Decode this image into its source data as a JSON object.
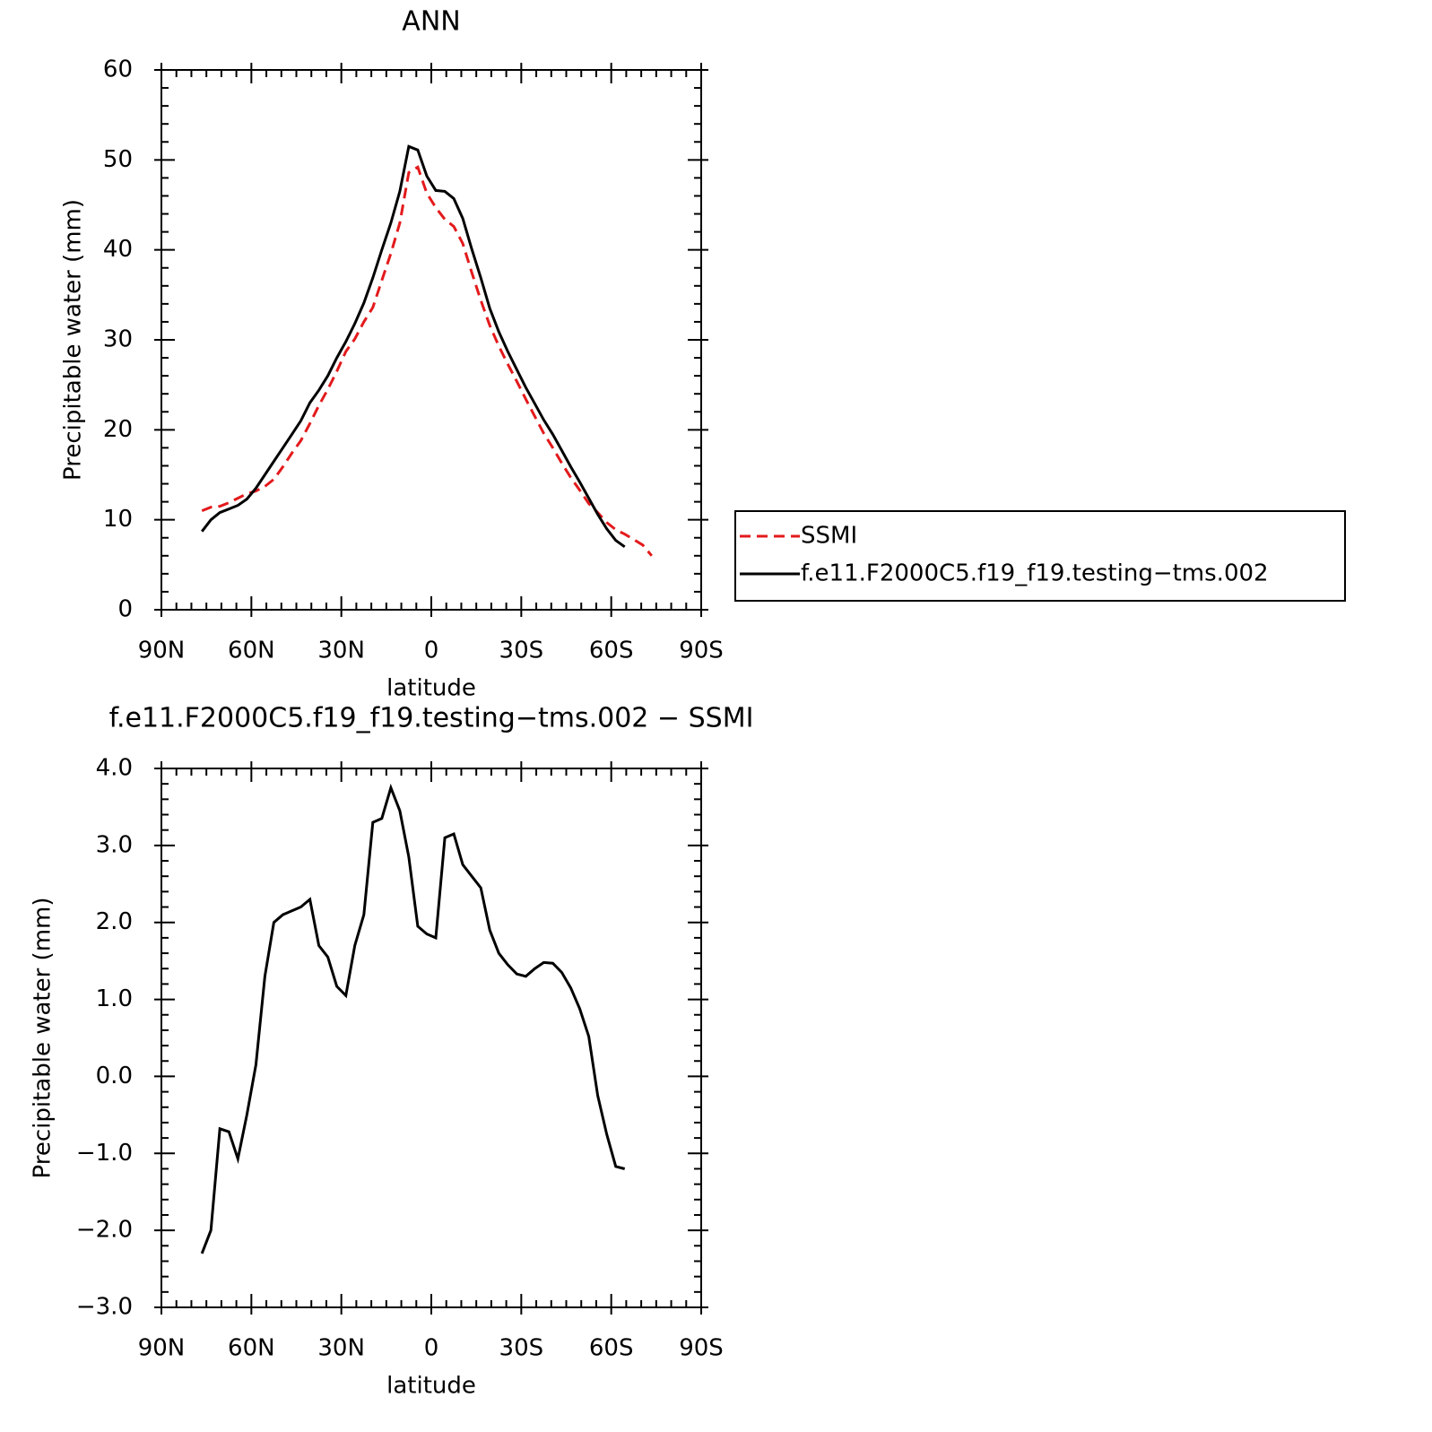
{
  "chart_data": [
    {
      "type": "line",
      "title": "ANN",
      "xlabel": "latitude",
      "ylabel": "Precipitable water (mm)",
      "x": [
        76.5,
        73.5,
        70.5,
        67.5,
        64.5,
        61.5,
        58.5,
        55.5,
        52.5,
        49.5,
        46.5,
        43.5,
        40.5,
        37.5,
        34.5,
        31.5,
        28.5,
        25.5,
        22.5,
        19.5,
        16.5,
        13.5,
        10.5,
        7.5,
        4.5,
        1.5,
        -1.5,
        -4.5,
        -7.5,
        -10.5,
        -13.5,
        -16.5,
        -19.5,
        -22.5,
        -25.5,
        -28.5,
        -31.5,
        -34.5,
        -37.5,
        -40.5,
        -43.5,
        -46.5,
        -49.5,
        -52.5,
        -55.5,
        -58.5,
        -61.5,
        -64.5,
        -67.5,
        -70.5,
        -73.5
      ],
      "series": [
        {
          "name": "SSMI",
          "color": "#e31a1c",
          "style": "dashed",
          "values": [
            11.0,
            11.4,
            11.5,
            11.9,
            12.4,
            12.9,
            13.2,
            13.7,
            14.5,
            15.9,
            17.4,
            18.8,
            20.7,
            22.7,
            24.5,
            26.5,
            28.7,
            30.1,
            32.0,
            33.6,
            36.6,
            39.6,
            43.0,
            48.6,
            49.2,
            46.3,
            44.7,
            43.4,
            42.6,
            40.7,
            37.5,
            34.4,
            31.6,
            29.3,
            27.3,
            25.4,
            23.4,
            21.5,
            19.6,
            18.0,
            16.3,
            14.7,
            13.3,
            11.8,
            10.8,
            9.7,
            8.9,
            8.4,
            7.8,
            7.2,
            6.0
          ]
        },
        {
          "name": "f.e11.F2000C5.f19_f19.testing−tms.002",
          "color": "#000000",
          "style": "solid",
          "values": [
            8.7,
            10.0,
            10.8,
            11.2,
            11.6,
            12.3,
            13.5,
            15.0,
            16.5,
            18.0,
            19.5,
            21.0,
            23.0,
            24.4,
            26.0,
            28.0,
            29.8,
            31.8,
            34.1,
            36.9,
            40.0,
            43.0,
            46.5,
            51.5,
            51.1,
            48.2,
            46.6,
            46.5,
            45.7,
            43.5,
            40.1,
            36.9,
            33.5,
            30.9,
            28.7,
            26.7,
            24.7,
            22.9,
            21.1,
            19.5,
            17.7,
            15.9,
            14.2,
            12.4,
            10.6,
            9.0,
            7.7,
            7.0,
            null,
            null,
            null
          ]
        }
      ],
      "xlim": [
        90,
        -90
      ],
      "xticks": [
        {
          "value": 90,
          "label": "90N"
        },
        {
          "value": 60,
          "label": "60N"
        },
        {
          "value": 30,
          "label": "30N"
        },
        0,
        {
          "value": -30,
          "label": "30S"
        },
        {
          "value": -60,
          "label": "60S"
        },
        {
          "value": -90,
          "label": "90S"
        }
      ],
      "ylim": [
        0,
        60
      ],
      "yticks": [
        0,
        10,
        20,
        30,
        40,
        50,
        60
      ],
      "legend": "right"
    },
    {
      "type": "line",
      "title": "f.e11.F2000C5.f19_f19.testing−tms.002  −  SSMI",
      "xlabel": "latitude",
      "ylabel": "Precipitable water (mm)",
      "x": [
        76.5,
        73.5,
        70.5,
        67.5,
        64.5,
        61.5,
        58.5,
        55.5,
        52.5,
        49.5,
        46.5,
        43.5,
        40.5,
        37.5,
        34.5,
        31.5,
        28.5,
        25.5,
        22.5,
        19.5,
        16.5,
        13.5,
        10.5,
        7.5,
        4.5,
        1.5,
        -1.5,
        -4.5,
        -7.5,
        -10.5,
        -13.5,
        -16.5,
        -19.5,
        -22.5,
        -25.5,
        -28.5,
        -31.5,
        -34.5,
        -37.5,
        -40.5,
        -43.5,
        -46.5,
        -49.5,
        -52.5,
        -55.5,
        -58.5,
        -61.5,
        -64.5
      ],
      "series": [
        {
          "color": "#000000",
          "style": "solid",
          "values": [
            -2.3,
            -2.0,
            -0.68,
            -0.72,
            -1.07,
            -0.5,
            0.15,
            1.3,
            2.0,
            2.1,
            2.15,
            2.2,
            2.3,
            1.7,
            1.55,
            1.17,
            1.05,
            1.7,
            2.1,
            3.3,
            3.35,
            3.75,
            3.45,
            2.85,
            1.95,
            1.85,
            1.8,
            3.1,
            3.15,
            2.75,
            2.6,
            2.45,
            1.9,
            1.6,
            1.45,
            1.33,
            1.3,
            1.4,
            1.48,
            1.47,
            1.35,
            1.15,
            0.88,
            0.52,
            -0.25,
            -0.75,
            -1.17,
            -1.2
          ]
        }
      ],
      "xlim": [
        90,
        -90
      ],
      "xticks": [
        {
          "value": 90,
          "label": "90N"
        },
        {
          "value": 60,
          "label": "60N"
        },
        {
          "value": 30,
          "label": "30N"
        },
        0,
        {
          "value": -30,
          "label": "30S"
        },
        {
          "value": -60,
          "label": "60S"
        },
        {
          "value": -90,
          "label": "90S"
        }
      ],
      "ylim": [
        -3,
        4
      ],
      "yticks": [
        {
          "value": -3,
          "label": "−3.0"
        },
        {
          "value": -2,
          "label": "−2.0"
        },
        {
          "value": -1,
          "label": "−1.0"
        },
        {
          "value": 0,
          "label": "0.0"
        },
        {
          "value": 1,
          "label": "1.0"
        },
        {
          "value": 2,
          "label": "2.0"
        },
        {
          "value": 3,
          "label": "3.0"
        },
        {
          "value": 4,
          "label": "4.0"
        }
      ]
    }
  ]
}
